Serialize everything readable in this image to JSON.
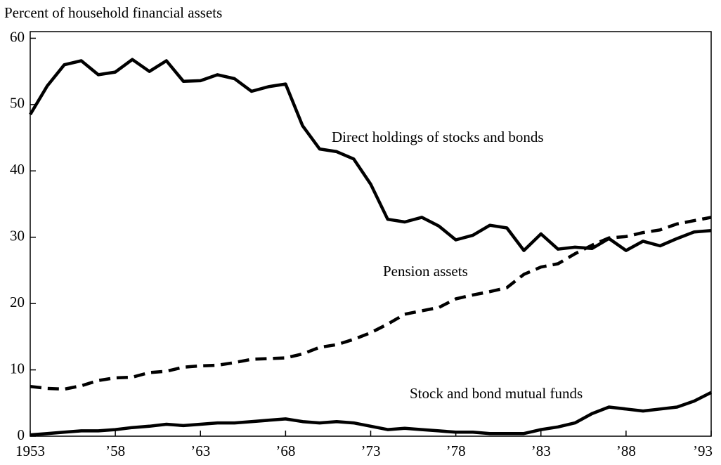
{
  "chart_data": {
    "type": "line",
    "ylabel": "Percent of household financial assets",
    "x": [
      1953,
      1954,
      1955,
      1956,
      1957,
      1958,
      1959,
      1960,
      1961,
      1962,
      1963,
      1964,
      1965,
      1966,
      1967,
      1968,
      1969,
      1970,
      1971,
      1972,
      1973,
      1974,
      1975,
      1976,
      1977,
      1978,
      1979,
      1980,
      1981,
      1982,
      1983,
      1984,
      1985,
      1986,
      1987,
      1988,
      1989,
      1990,
      1991,
      1992,
      1993
    ],
    "series": [
      {
        "name": "Direct holdings of stocks and bonds",
        "color": "#000000",
        "style": "solid",
        "values": [
          48.5,
          52.8,
          56,
          56.6,
          54.5,
          54.9,
          56.8,
          55,
          56.6,
          53.5,
          53.6,
          54.5,
          53.9,
          52,
          52.7,
          53.1,
          46.8,
          43.3,
          42.9,
          41.8,
          38,
          32.7,
          32.3,
          33,
          31.7,
          29.6,
          30.3,
          31.8,
          31.4,
          28,
          30.5,
          28.2,
          28.5,
          28.3,
          29.8,
          28,
          29.4,
          28.7,
          29.8,
          30.8,
          31
        ]
      },
      {
        "name": "Pension assets",
        "color": "#000000",
        "style": "dashed",
        "values": [
          7.5,
          7.2,
          7.1,
          7.6,
          8.4,
          8.8,
          8.9,
          9.6,
          9.8,
          10.4,
          10.6,
          10.7,
          11.1,
          11.6,
          11.7,
          11.8,
          12.4,
          13.4,
          13.8,
          14.6,
          15.6,
          16.9,
          18.4,
          18.9,
          19.4,
          20.7,
          21.3,
          21.8,
          22.4,
          24.4,
          25.5,
          26,
          27.5,
          28.8,
          29.9,
          30.1,
          30.7,
          31.1,
          32,
          32.5,
          33
        ]
      },
      {
        "name": "Stock and bond mutual funds",
        "color": "#000000",
        "style": "solid",
        "values": [
          0.2,
          0.4,
          0.6,
          0.8,
          0.8,
          1,
          1.3,
          1.5,
          1.8,
          1.6,
          1.8,
          2,
          2,
          2.2,
          2.4,
          2.6,
          2.2,
          2,
          2.2,
          2,
          1.5,
          1,
          1.2,
          1,
          0.8,
          0.6,
          0.6,
          0.4,
          0.4,
          0.4,
          1,
          1.4,
          2,
          3.4,
          4.4,
          4.1,
          3.8,
          4.1,
          4.4,
          5.3,
          6.6
        ]
      }
    ],
    "xlim": [
      1953,
      1993
    ],
    "xticks": [
      {
        "value": 1953,
        "label": "1953"
      },
      {
        "value": 1958,
        "label": "’58"
      },
      {
        "value": 1963,
        "label": "’63"
      },
      {
        "value": 1968,
        "label": "’68"
      },
      {
        "value": 1973,
        "label": "’73"
      },
      {
        "value": 1978,
        "label": "’78"
      },
      {
        "value": 1983,
        "label": "’83"
      },
      {
        "value": 1988,
        "label": "’88"
      },
      {
        "value": 1993,
        "label": "’93"
      }
    ],
    "ylim": [
      0,
      61
    ],
    "yticks": [
      0,
      10,
      20,
      30,
      40,
      50,
      60
    ],
    "grid": false
  }
}
